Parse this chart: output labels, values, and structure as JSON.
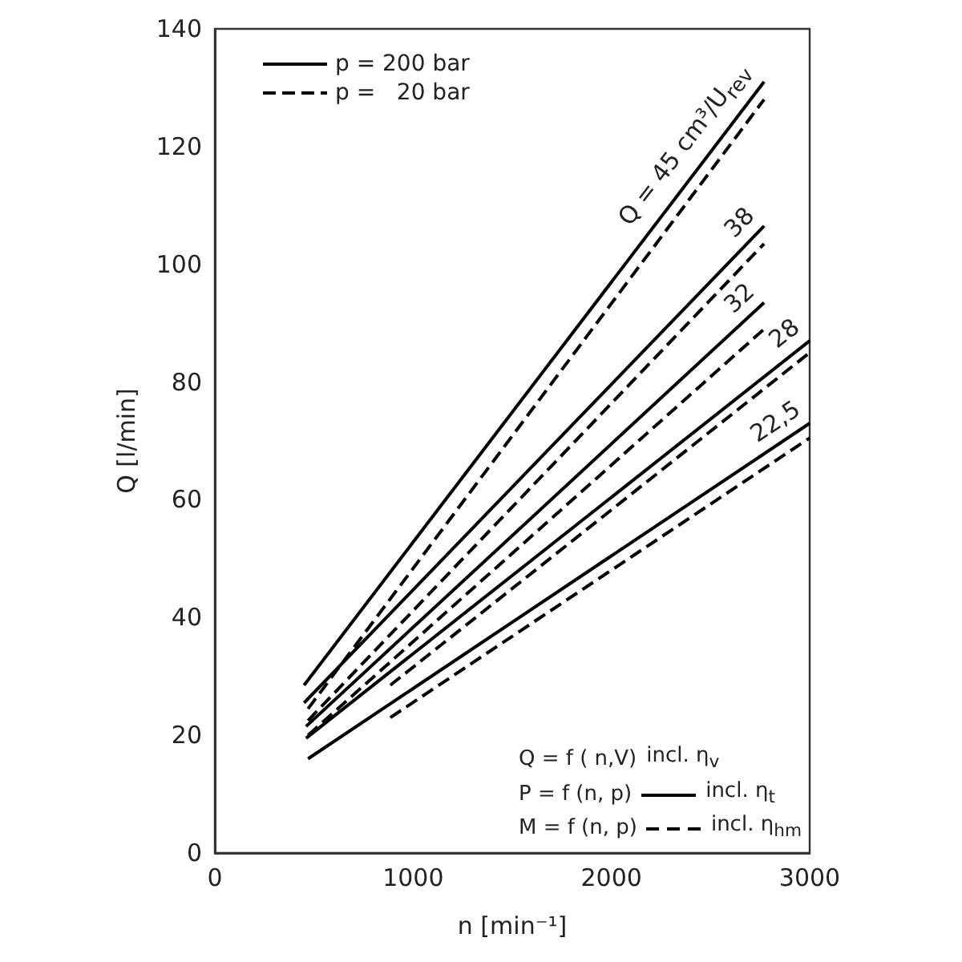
{
  "chart_data": {
    "type": "line",
    "xlabel": "n [min⁻¹]",
    "ylabel": "Q [l/min]",
    "xlim": [
      0,
      3000
    ],
    "xticks": [
      0,
      1000,
      2000,
      3000
    ],
    "ylim": [
      0,
      140
    ],
    "yticks": [
      0,
      20,
      40,
      60,
      80,
      100,
      120,
      140
    ],
    "grid": false,
    "legend": "top left",
    "marker": "none",
    "series": [
      {
        "name": "p = 200 bar",
        "color": "#000000",
        "line_style": "solid",
        "x": [
          450,
          2770
        ],
        "values": [
          28.5,
          131
        ]
      },
      {
        "name": "p =   20 bar",
        "color": "#000000",
        "line_style": "dashed",
        "x": [
          470,
          2770
        ],
        "values": [
          24.5,
          128
        ]
      },
      {
        "color": "#000000",
        "line_style": "solid",
        "x": [
          450,
          2770
        ],
        "values": [
          25.5,
          106.5
        ]
      },
      {
        "color": "#000000",
        "line_style": "dashed",
        "x": [
          470,
          2770
        ],
        "values": [
          22.5,
          103.5
        ]
      },
      {
        "color": "#000000",
        "line_style": "solid",
        "x": [
          460,
          2770
        ],
        "values": [
          21.5,
          93.5
        ]
      },
      {
        "color": "#000000",
        "line_style": "dashed",
        "x": [
          470,
          2770
        ],
        "values": [
          20,
          89
        ]
      },
      {
        "color": "#000000",
        "line_style": "solid",
        "x": [
          460,
          3000
        ],
        "values": [
          19.5,
          87
        ]
      },
      {
        "color": "#000000",
        "line_style": "dashed",
        "x": [
          885,
          3000
        ],
        "values": [
          28.5,
          85
        ]
      },
      {
        "color": "#000000",
        "line_style": "solid",
        "x": [
          470,
          3000
        ],
        "values": [
          16,
          73
        ]
      },
      {
        "color": "#000000",
        "line_style": "dashed",
        "x": [
          885,
          3000
        ],
        "values": [
          23,
          70.5
        ]
      }
    ],
    "annotations": [
      "Q = 45 cm³/U$_{rev}$",
      "38",
      "32",
      "28",
      "22,5",
      "Q = f ( n,V)",
      "incl. η$_{v}$",
      "P = f (n, p)",
      "incl. η$_{t}$",
      "M = f (n, p)",
      "incl. η$_{hm}$"
    ]
  }
}
